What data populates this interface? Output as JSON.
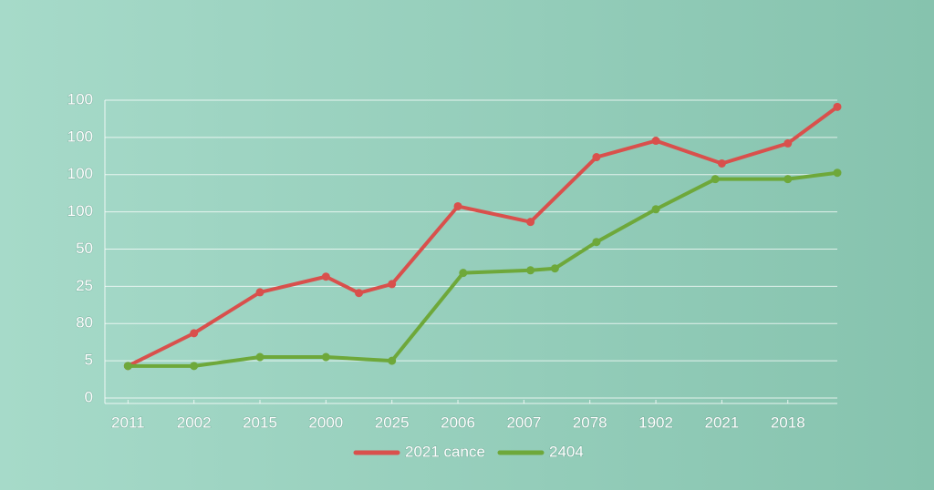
{
  "chart_data": {
    "type": "line",
    "xlim": [
      -0.35,
      10.75
    ],
    "xticks": [
      {
        "value": 0,
        "label": "2011"
      },
      {
        "value": 1,
        "label": "2002"
      },
      {
        "value": 2,
        "label": "2015"
      },
      {
        "value": 3,
        "label": "2000"
      },
      {
        "value": 4,
        "label": "2025"
      },
      {
        "value": 5,
        "label": "2006"
      },
      {
        "value": 6,
        "label": "2007"
      },
      {
        "value": 7,
        "label": "2078"
      },
      {
        "value": 8,
        "label": "1902"
      },
      {
        "value": 9,
        "label": "2021"
      },
      {
        "value": 10,
        "label": "2018"
      }
    ],
    "ylim": [
      0,
      8
    ],
    "yticks": [
      {
        "value": 0,
        "label": "0"
      },
      {
        "value": 1,
        "label": "5"
      },
      {
        "value": 2,
        "label": "80"
      },
      {
        "value": 3,
        "label": "25"
      },
      {
        "value": 4,
        "label": "50"
      },
      {
        "value": 5,
        "label": "100"
      },
      {
        "value": 6,
        "label": "100"
      },
      {
        "value": 7,
        "label": "100"
      },
      {
        "value": 8,
        "label": "100"
      }
    ],
    "grid": true,
    "legend": "bottom",
    "series": [
      {
        "name": "2021 cance",
        "color": "#d9504c",
        "x": [
          0,
          1,
          2,
          3,
          3.5,
          4,
          5,
          6.1,
          7.1,
          8,
          9,
          10,
          10.75
        ],
        "values": [
          0.86,
          1.74,
          2.84,
          3.26,
          2.82,
          3.06,
          5.15,
          4.73,
          6.47,
          6.91,
          6.3,
          6.84,
          7.82
        ]
      },
      {
        "name": "2404",
        "color": "#6ea83a",
        "x": [
          0,
          1,
          2,
          3,
          4,
          5.08,
          6.1,
          6.47,
          7.1,
          8,
          8.9,
          10,
          10.75
        ],
        "values": [
          0.86,
          0.86,
          1.1,
          1.1,
          1.0,
          3.36,
          3.43,
          3.48,
          4.19,
          5.07,
          5.88,
          5.88,
          6.05
        ]
      }
    ]
  }
}
